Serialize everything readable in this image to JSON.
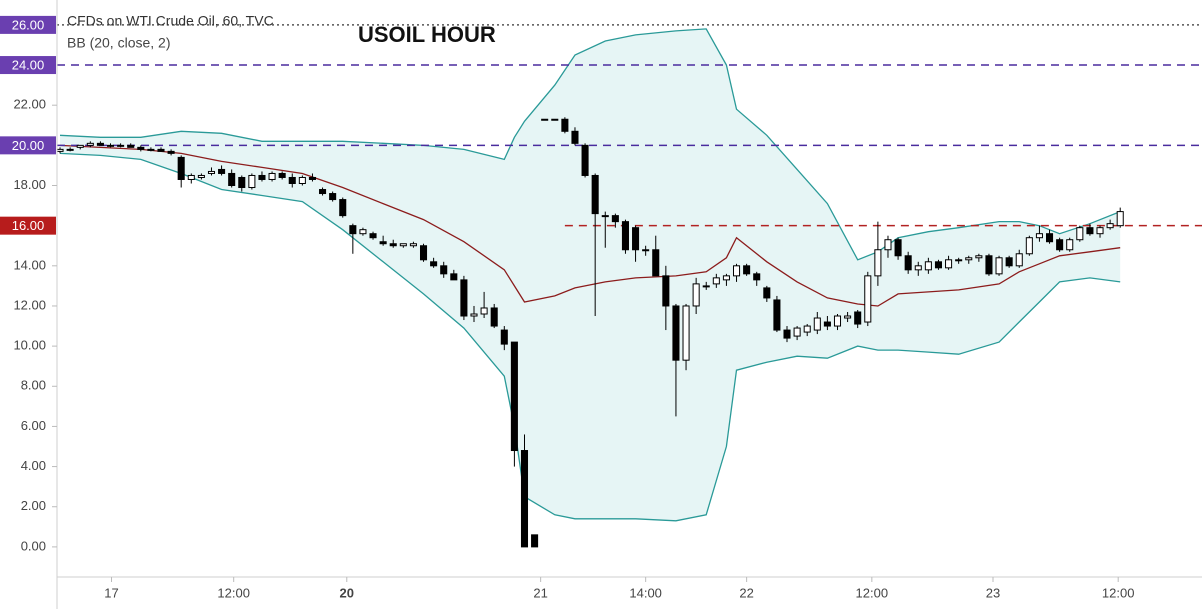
{
  "chart_data": {
    "type": "candlestick",
    "title": "CFDs on WTI Crude Oil, 60, TVC",
    "subtitle": "BB (20, close, 2)",
    "annotation": "USOIL HOUR",
    "grid": false,
    "up_color": "#ffffff",
    "down_color": "#000000",
    "wick_color": "#000000",
    "x": [
      0,
      1,
      2,
      3,
      4,
      5,
      6,
      7,
      8,
      9,
      10,
      11,
      12,
      13,
      14,
      15,
      16,
      17,
      18,
      19,
      20,
      21,
      22,
      23,
      24,
      25,
      26,
      27,
      28,
      29,
      30,
      31,
      32,
      33,
      34,
      35,
      36,
      37,
      38,
      39,
      40,
      41,
      42,
      43,
      44,
      45,
      46,
      47,
      48,
      49,
      50,
      51,
      52,
      53,
      54,
      55,
      56,
      57,
      58,
      59,
      60,
      61,
      62,
      63,
      64,
      65,
      66,
      67,
      68,
      69,
      70,
      71,
      72,
      73,
      74,
      75,
      76,
      77,
      78,
      79,
      80,
      81,
      82,
      83,
      84,
      85,
      86,
      87,
      88,
      89,
      90,
      91,
      92,
      93,
      94,
      95,
      96,
      97,
      98,
      99,
      100,
      101,
      102,
      103,
      104,
      105
    ],
    "open": [
      19.7,
      19.8,
      19.9,
      20.0,
      20.1,
      20.0,
      20.0,
      20.0,
      19.9,
      19.8,
      19.8,
      19.7,
      19.4,
      18.3,
      18.4,
      18.6,
      18.8,
      18.6,
      18.4,
      17.9,
      18.5,
      18.3,
      18.6,
      18.4,
      18.1,
      18.4,
      17.8,
      17.6,
      17.3,
      16.0,
      15.6,
      15.6,
      15.2,
      15.1,
      15.0,
      15.0,
      15.0,
      14.2,
      14.0,
      13.6,
      13.3,
      11.5,
      11.6,
      11.9,
      10.8,
      10.2,
      4.8,
      0.6,
      21.3,
      21.3,
      21.3,
      20.7,
      20.0,
      18.5,
      16.5,
      16.5,
      16.2,
      15.9,
      14.8,
      14.8,
      13.5,
      12.0,
      9.3,
      12.0,
      13.0,
      13.1,
      13.3,
      13.5,
      14.0,
      13.6,
      12.9,
      12.3,
      10.8,
      10.5,
      10.7,
      10.8,
      11.2,
      11.0,
      11.4,
      11.7,
      11.2,
      13.5,
      14.8,
      15.3,
      14.5,
      13.8,
      13.8,
      14.2,
      13.9,
      14.3,
      14.3,
      14.4,
      14.5,
      13.6,
      14.4,
      14.0,
      14.6,
      15.4,
      15.6,
      15.3,
      14.8,
      15.3,
      15.9,
      15.6,
      15.9,
      16.0
    ],
    "high": [
      19.9,
      19.9,
      20.0,
      20.2,
      20.2,
      20.1,
      20.1,
      20.1,
      20.0,
      19.9,
      19.9,
      19.8,
      19.5,
      18.6,
      18.6,
      18.9,
      19.0,
      18.8,
      18.5,
      18.6,
      18.7,
      18.7,
      18.7,
      18.6,
      18.5,
      18.6,
      17.9,
      17.7,
      17.4,
      16.1,
      15.9,
      15.7,
      15.5,
      15.3,
      15.1,
      15.2,
      15.1,
      14.4,
      14.2,
      13.8,
      13.5,
      12.0,
      12.7,
      12.1,
      11.0,
      10.2,
      5.6,
      0.6,
      21.3,
      21.3,
      21.4,
      20.9,
      20.1,
      18.6,
      16.7,
      16.6,
      16.3,
      16.0,
      15.0,
      15.5,
      14.0,
      12.1,
      12.1,
      13.4,
      13.2,
      13.6,
      13.6,
      14.1,
      14.1,
      13.7,
      13.0,
      12.5,
      11.0,
      11.0,
      11.1,
      11.7,
      11.5,
      11.6,
      11.7,
      11.8,
      13.7,
      16.2,
      15.5,
      15.4,
      14.7,
      14.2,
      14.4,
      14.3,
      14.5,
      14.4,
      14.5,
      14.6,
      14.6,
      14.5,
      14.5,
      14.8,
      15.5,
      16.0,
      15.8,
      15.4,
      15.4,
      16.0,
      16.1,
      16.0,
      16.3,
      16.9
    ],
    "low": [
      19.6,
      19.7,
      19.8,
      19.9,
      20.0,
      19.9,
      19.9,
      19.9,
      19.7,
      19.7,
      19.7,
      19.5,
      17.9,
      18.1,
      18.3,
      18.5,
      18.5,
      17.9,
      17.7,
      17.8,
      18.2,
      18.2,
      18.3,
      17.9,
      18.0,
      18.2,
      17.5,
      17.2,
      16.4,
      14.6,
      15.5,
      15.3,
      15.0,
      14.9,
      14.9,
      14.9,
      14.2,
      13.9,
      13.4,
      13.3,
      11.3,
      11.2,
      11.4,
      10.9,
      9.8,
      4.0,
      0.0,
      0.0,
      21.3,
      21.3,
      20.6,
      20.0,
      18.4,
      11.5,
      14.9,
      15.9,
      14.6,
      14.2,
      14.5,
      13.5,
      10.8,
      6.5,
      8.8,
      11.6,
      12.8,
      12.9,
      13.0,
      13.2,
      13.5,
      13.0,
      12.2,
      10.7,
      10.2,
      10.3,
      10.5,
      10.6,
      10.8,
      10.8,
      11.2,
      10.9,
      11.0,
      13.0,
      14.4,
      14.3,
      13.6,
      13.5,
      13.6,
      13.8,
      13.8,
      14.1,
      14.1,
      14.2,
      13.5,
      13.5,
      13.9,
      13.9,
      14.5,
      15.2,
      15.1,
      14.7,
      14.7,
      15.2,
      15.5,
      15.4,
      15.8,
      15.9
    ],
    "close": [
      19.8,
      19.8,
      20.0,
      20.1,
      20.0,
      20.0,
      20.0,
      19.9,
      19.8,
      19.8,
      19.7,
      19.6,
      18.3,
      18.5,
      18.5,
      18.7,
      18.6,
      18.0,
      17.9,
      18.5,
      18.3,
      18.6,
      18.4,
      18.1,
      18.4,
      18.3,
      17.6,
      17.3,
      16.5,
      15.6,
      15.8,
      15.4,
      15.1,
      15.0,
      15.1,
      15.1,
      14.3,
      14.0,
      13.6,
      13.3,
      11.5,
      11.6,
      11.9,
      11.0,
      10.1,
      4.8,
      0.0,
      0.0,
      21.3,
      21.3,
      20.7,
      20.1,
      18.5,
      16.6,
      16.5,
      16.2,
      14.8,
      14.8,
      14.8,
      13.5,
      12.0,
      9.3,
      12.0,
      13.1,
      13.0,
      13.4,
      13.5,
      14.0,
      13.6,
      13.3,
      12.4,
      10.8,
      10.4,
      10.9,
      11.0,
      11.4,
      11.0,
      11.5,
      11.5,
      11.1,
      13.5,
      14.8,
      15.3,
      14.5,
      13.8,
      14.0,
      14.2,
      13.9,
      14.3,
      14.3,
      14.4,
      14.5,
      13.6,
      14.4,
      14.0,
      14.6,
      15.4,
      15.6,
      15.2,
      14.8,
      15.3,
      15.9,
      15.6,
      15.9,
      16.1,
      16.7
    ],
    "bands": {
      "x": [
        0,
        4,
        8,
        12,
        16,
        20,
        24,
        28,
        32,
        36,
        40,
        44,
        45,
        46,
        49,
        51,
        54,
        57,
        61,
        64,
        66,
        67,
        70,
        73,
        76,
        79,
        81,
        83,
        86,
        89,
        93,
        95,
        97,
        99,
        102,
        105
      ],
      "upper": [
        20.5,
        20.4,
        20.4,
        20.7,
        20.6,
        20.2,
        20.2,
        20.2,
        20.1,
        20.0,
        19.8,
        19.3,
        20.4,
        21.2,
        23.0,
        24.5,
        25.2,
        25.5,
        25.7,
        25.8,
        24.0,
        21.8,
        20.5,
        18.8,
        17.1,
        14.3,
        14.7,
        15.4,
        15.7,
        15.9,
        16.2,
        16.2,
        16.0,
        15.6,
        16.1,
        16.7
      ],
      "middle": [
        20.0,
        19.9,
        19.8,
        19.6,
        19.2,
        18.9,
        18.6,
        17.9,
        17.1,
        16.3,
        15.2,
        13.8,
        13.0,
        12.2,
        12.5,
        12.9,
        13.2,
        13.4,
        13.5,
        13.7,
        14.4,
        15.4,
        14.2,
        13.2,
        12.4,
        12.1,
        12.0,
        12.6,
        12.7,
        12.8,
        13.1,
        13.7,
        14.1,
        14.5,
        14.7,
        14.9
      ],
      "lower": [
        19.6,
        19.5,
        19.3,
        18.6,
        17.8,
        17.5,
        17.2,
        15.8,
        14.2,
        12.6,
        10.9,
        8.5,
        6.0,
        2.5,
        1.6,
        1.4,
        1.4,
        1.4,
        1.3,
        1.6,
        5.0,
        8.8,
        9.2,
        9.5,
        9.4,
        10.0,
        9.8,
        9.8,
        9.7,
        9.6,
        10.2,
        11.2,
        12.2,
        13.2,
        13.4,
        13.2
      ],
      "band_color": "#2a9a98",
      "middle_color": "#8c1c1c",
      "fill_color": "#e6f5f5"
    },
    "hlines": [
      {
        "value": 26,
        "label": "26.00",
        "color": "#555555",
        "badge_color": "#6a3fb0",
        "style": "dotted"
      },
      {
        "value": 24,
        "label": "24.00",
        "color": "#4a2c9e",
        "badge_color": "#6a3fb0",
        "style": "dashed"
      },
      {
        "value": 20,
        "label": "20.00",
        "color": "#4a2c9e",
        "badge_color": "#6a3fb0",
        "style": "dashed"
      },
      {
        "value": 16,
        "label": "16.00",
        "color": "#b22222",
        "badge_color": "#b71c1c",
        "style": "dashed",
        "from": 50
      }
    ],
    "ylim": [
      -1.5,
      27.24
    ],
    "yticks": [
      {
        "value": 0,
        "label": "0.00"
      },
      {
        "value": 2,
        "label": "2.00"
      },
      {
        "value": 4,
        "label": "4.00"
      },
      {
        "value": 6,
        "label": "6.00"
      },
      {
        "value": 8,
        "label": "8.00"
      },
      {
        "value": 10,
        "label": "10.00"
      },
      {
        "value": 12,
        "label": "12.00"
      },
      {
        "value": 14,
        "label": "14.00"
      },
      {
        "value": 18,
        "label": "18.00"
      },
      {
        "value": 22,
        "label": "22.00"
      }
    ],
    "xlim": [
      -0.3,
      113.1
    ],
    "xticks": [
      {
        "value": 5.1,
        "label": "17"
      },
      {
        "value": 17.2,
        "label": "12:00"
      },
      {
        "value": 28.4,
        "label": "20",
        "bold": true
      },
      {
        "value": 47.6,
        "label": "21"
      },
      {
        "value": 58.0,
        "label": "14:00"
      },
      {
        "value": 68.0,
        "label": "22"
      },
      {
        "value": 80.4,
        "label": "12:00"
      },
      {
        "value": 92.4,
        "label": "23"
      },
      {
        "value": 104.8,
        "label": "12:00"
      }
    ]
  }
}
